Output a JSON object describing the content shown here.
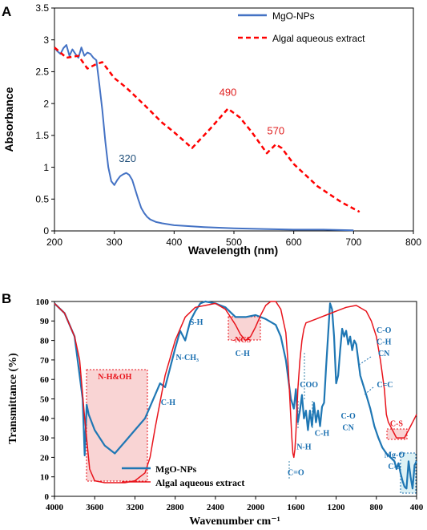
{
  "chart_data": [
    {
      "panel": "A",
      "type": "line",
      "xlabel": "Wavelength (nm)",
      "ylabel": "Absorbance",
      "xlim": [
        200,
        800
      ],
      "ylim": [
        0,
        3.5
      ],
      "xticks": [
        "200",
        "300",
        "400",
        "500",
        "600",
        "700",
        "800"
      ],
      "yticks": [
        "0",
        "0.5",
        "1",
        "1.5",
        "2",
        "2.5",
        "3",
        "3.5"
      ],
      "grid": false,
      "legend_position": "top-right",
      "series": [
        {
          "name": "MgO-NPs",
          "color": "#4472c4",
          "style": "solid",
          "x": [
            200,
            205,
            210,
            215,
            220,
            225,
            230,
            235,
            240,
            245,
            250,
            255,
            260,
            265,
            270,
            275,
            280,
            285,
            290,
            295,
            300,
            305,
            310,
            315,
            320,
            325,
            330,
            335,
            340,
            345,
            350,
            355,
            360,
            370,
            380,
            400,
            450,
            500,
            550,
            600,
            650,
            700
          ],
          "y": [
            2.88,
            2.82,
            2.78,
            2.87,
            2.92,
            2.75,
            2.85,
            2.78,
            2.72,
            2.88,
            2.75,
            2.8,
            2.78,
            2.72,
            2.68,
            2.3,
            1.9,
            1.4,
            1.0,
            0.78,
            0.72,
            0.8,
            0.86,
            0.89,
            0.91,
            0.88,
            0.8,
            0.65,
            0.5,
            0.36,
            0.28,
            0.22,
            0.18,
            0.14,
            0.12,
            0.09,
            0.06,
            0.04,
            0.03,
            0.02,
            0.02,
            0.01
          ]
        },
        {
          "name": "Algal aqueous extract",
          "color": "#ff0000",
          "style": "dashed",
          "x": [
            200,
            220,
            240,
            255,
            270,
            280,
            300,
            320,
            350,
            380,
            400,
            430,
            460,
            490,
            510,
            530,
            555,
            570,
            580,
            600,
            640,
            680,
            710
          ],
          "y": [
            2.88,
            2.72,
            2.75,
            2.55,
            2.62,
            2.65,
            2.4,
            2.25,
            1.98,
            1.7,
            1.55,
            1.3,
            1.6,
            1.92,
            1.78,
            1.55,
            1.22,
            1.36,
            1.3,
            1.05,
            0.7,
            0.45,
            0.3
          ]
        }
      ],
      "annotations": [
        {
          "text": "320",
          "x": 322,
          "y": 1.08,
          "color": "#1f4e79"
        },
        {
          "text": "490",
          "x": 490,
          "y": 2.12,
          "color": "#e02020"
        },
        {
          "text": "570",
          "x": 570,
          "y": 1.52,
          "color": "#e02020"
        }
      ]
    },
    {
      "panel": "B",
      "type": "line",
      "xlabel": "Wavenumber cm⁻¹",
      "ylabel": "Transmittance (%)",
      "xlim": [
        4000,
        400
      ],
      "ylim": [
        0,
        100
      ],
      "xticks": [
        "4000",
        "3600",
        "3200",
        "2800",
        "2400",
        "2000",
        "1600",
        "1200",
        "800",
        "400"
      ],
      "yticks": [
        "0",
        "10",
        "20",
        "30",
        "40",
        "50",
        "60",
        "70",
        "80",
        "90",
        "100"
      ],
      "grid": false,
      "legend_position": "bottom-center",
      "series": [
        {
          "name": "MgO-NPs",
          "color": "#1f77b4",
          "style": "solid",
          "x": [
            4000,
            3900,
            3800,
            3720,
            3700,
            3680,
            3660,
            3600,
            3500,
            3400,
            3300,
            3200,
            3100,
            3000,
            2950,
            2900,
            2850,
            2800,
            2750,
            2700,
            2650,
            2600,
            2550,
            2500,
            2400,
            2300,
            2200,
            2100,
            2000,
            1900,
            1800,
            1750,
            1700,
            1650,
            1620,
            1600,
            1580,
            1560,
            1540,
            1520,
            1500,
            1480,
            1460,
            1440,
            1420,
            1400,
            1380,
            1360,
            1340,
            1320,
            1300,
            1260,
            1240,
            1220,
            1200,
            1180,
            1160,
            1140,
            1120,
            1100,
            1080,
            1060,
            1040,
            1020,
            1000,
            960,
            900,
            860,
            820,
            780,
            740,
            700,
            660,
            620,
            600,
            580,
            560,
            540,
            520,
            500,
            480,
            460,
            440,
            420,
            400
          ],
          "y": [
            99,
            94,
            82,
            50,
            21,
            47,
            42,
            34,
            26,
            22,
            28,
            34,
            40,
            52,
            58,
            56,
            66,
            76,
            85,
            80,
            90,
            95,
            99,
            100,
            99,
            97,
            92,
            92,
            93,
            91,
            88,
            82,
            70,
            50,
            45,
            55,
            38,
            44,
            52,
            40,
            44,
            34,
            44,
            36,
            48,
            38,
            44,
            36,
            46,
            48,
            66,
            99,
            96,
            82,
            58,
            62,
            75,
            86,
            82,
            85,
            78,
            82,
            75,
            80,
            78,
            62,
            52,
            45,
            36,
            30,
            25,
            22,
            20,
            18,
            14,
            17,
            12,
            8,
            5,
            4,
            18,
            10,
            4,
            16,
            18
          ]
        },
        {
          "name": "Algal aqueous extract",
          "color": "#e8141c",
          "style": "solid",
          "x": [
            4000,
            3900,
            3800,
            3750,
            3700,
            3650,
            3600,
            3500,
            3400,
            3300,
            3200,
            3100,
            3050,
            3000,
            2900,
            2800,
            2700,
            2600,
            2500,
            2400,
            2300,
            2250,
            2200,
            2150,
            2100,
            2050,
            2000,
            1950,
            1900,
            1850,
            1800,
            1750,
            1700,
            1680,
            1660,
            1640,
            1630,
            1620,
            1610,
            1600,
            1580,
            1560,
            1540,
            1520,
            1500,
            1450,
            1400,
            1350,
            1300,
            1200,
            1100,
            1000,
            900,
            850,
            800,
            760,
            720,
            700,
            680,
            660,
            640,
            600,
            560,
            520,
            500,
            480,
            460,
            440,
            420,
            400
          ],
          "y": [
            99,
            94,
            82,
            70,
            40,
            14,
            8,
            7,
            7,
            7,
            8,
            12,
            20,
            35,
            62,
            80,
            92,
            97,
            98,
            99,
            96,
            92,
            88,
            83,
            80,
            82,
            87,
            93,
            98,
            100,
            100,
            96,
            84,
            70,
            50,
            30,
            22,
            20,
            24,
            32,
            55,
            70,
            80,
            86,
            89,
            90,
            91,
            92,
            93,
            95,
            97,
            98,
            95,
            90,
            82,
            70,
            55,
            42,
            38,
            36,
            34,
            30,
            30,
            30,
            32,
            34,
            36,
            38,
            40,
            42
          ]
        }
      ],
      "annotations": [
        {
          "text": "N-H&OH",
          "x": 3400,
          "y": 60,
          "color": "#e8141c"
        },
        {
          "text": "C-H",
          "x": 2870,
          "y": 47,
          "color": "#1a6fb0"
        },
        {
          "text": "N-CH₃",
          "x": 2680,
          "y": 70,
          "color": "#1a6fb0"
        },
        {
          "text": "S-H",
          "x": 2590,
          "y": 88,
          "color": "#1a6fb0"
        },
        {
          "text": "-NCS",
          "x": 2140,
          "y": 79,
          "color": "#e8141c"
        },
        {
          "text": "C-H",
          "x": 2130,
          "y": 72,
          "color": "#1a6fb0"
        },
        {
          "text": "C=O",
          "x": 1600,
          "y": 11,
          "color": "#1a6fb0"
        },
        {
          "text": "COO",
          "x": 1470,
          "y": 56,
          "color": "#1a6fb0"
        },
        {
          "text": "N-H",
          "x": 1520,
          "y": 24,
          "color": "#1a6fb0"
        },
        {
          "text": "C-H",
          "x": 1340,
          "y": 31,
          "color": "#1a6fb0"
        },
        {
          "text": "C-O",
          "x": 1080,
          "y": 40,
          "color": "#1a6fb0"
        },
        {
          "text": "CN",
          "x": 1080,
          "y": 34,
          "color": "#1a6fb0"
        },
        {
          "text": "C-O",
          "x": 725,
          "y": 84,
          "color": "#1a6fb0"
        },
        {
          "text": "C-H",
          "x": 725,
          "y": 78,
          "color": "#1a6fb0"
        },
        {
          "text": "CN",
          "x": 725,
          "y": 72,
          "color": "#1a6fb0"
        },
        {
          "text": "C=C",
          "x": 715,
          "y": 56,
          "color": "#1a6fb0"
        },
        {
          "text": "C-S",
          "x": 600,
          "y": 36,
          "color": "#e8141c"
        },
        {
          "text": "Mg-O",
          "x": 620,
          "y": 20,
          "color": "#1a6fb0"
        },
        {
          "text": "C-S",
          "x": 620,
          "y": 14,
          "color": "#1a6fb0"
        }
      ]
    }
  ],
  "panel_labels": [
    "A",
    "B"
  ],
  "colors": {
    "mgo_a": "#4472c4",
    "algal_a": "#ff0000",
    "mgo_b": "#1f77b4",
    "algal_b": "#e8141c",
    "label_blue": "#1a6fb0",
    "label_red": "#e8141c",
    "highlight_fill": "#f7c6c6",
    "highlight_stroke": "#e8141c",
    "highlight_fill_blue": "#d4eef2"
  }
}
